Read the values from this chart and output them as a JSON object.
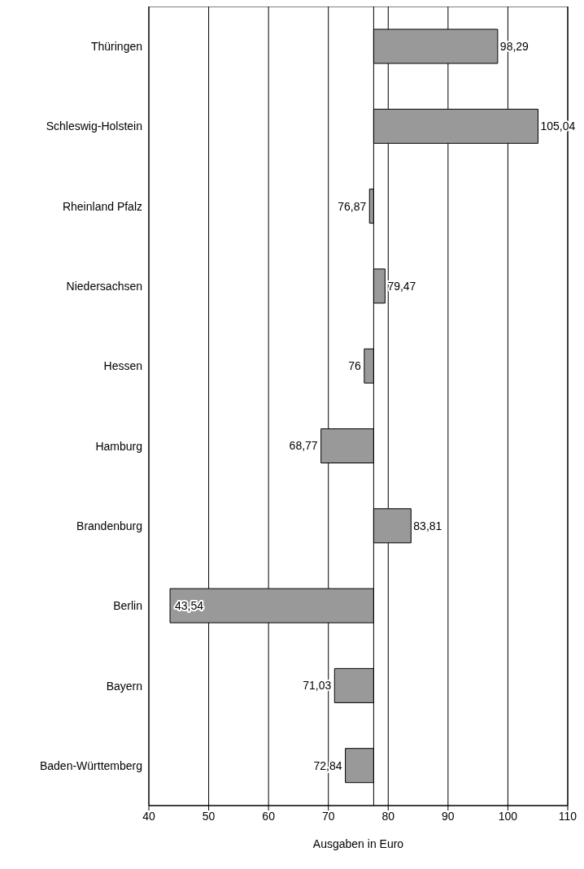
{
  "chart_data": {
    "type": "bar",
    "orientation": "horizontal",
    "xlabel": "Ausgaben in Euro",
    "categories": [
      "Thüringen",
      "Schleswig-Holstein",
      "Rheinland Pfalz",
      "Niedersachsen",
      "Hessen",
      "Hamburg",
      "Brandenburg",
      "Berlin",
      "Bayern",
      "Baden-Württemberg"
    ],
    "base": [
      77.57,
      77.57,
      77.57,
      77.57,
      77.57,
      77.57,
      77.57,
      77.57,
      77.57,
      77.57
    ],
    "values": [
      20.72,
      27.47,
      -0.7,
      1.9,
      -1.57,
      -8.8,
      6.24,
      -34.03,
      -6.54,
      -4.73
    ],
    "value_labels": [
      "98,29",
      "105,04",
      "76,87",
      "79,47",
      "76",
      "68,77",
      "83,81",
      "43,54",
      "71,03",
      "72,84"
    ],
    "color": "#999999",
    "xlim": [
      40,
      110
    ],
    "xticks": [
      40,
      50,
      60,
      70,
      80,
      90,
      100,
      110
    ],
    "grid": "x"
  }
}
